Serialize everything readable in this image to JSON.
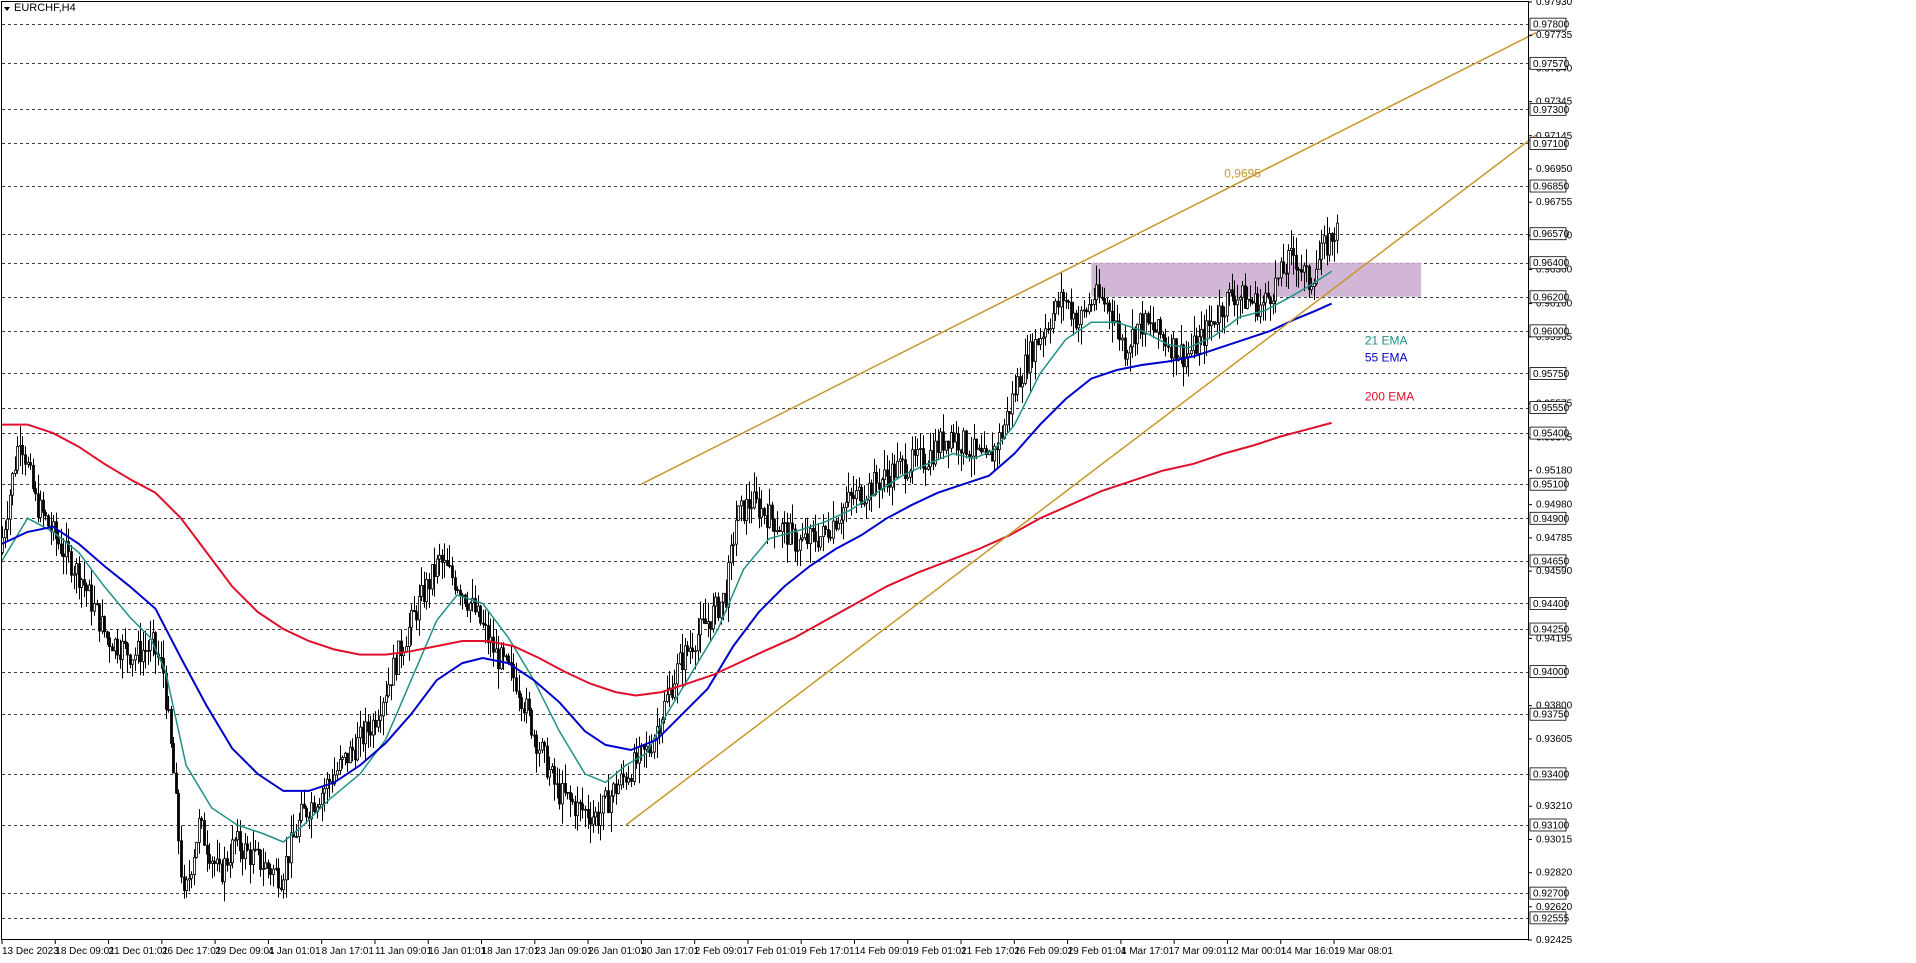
{
  "window": {
    "symbol_title": "EURCHF,H4"
  },
  "chart_data": {
    "type": "candlestick",
    "symbol": "EURCHF",
    "timeframe": "H4",
    "ylim": [
      0.92425,
      0.9793
    ],
    "y_ticks": [
      0.9793,
      0.978,
      0.97735,
      0.9757,
      0.9754,
      0.97345,
      0.973,
      0.97145,
      0.971,
      0.9695,
      0.9685,
      0.96755,
      0.9657,
      0.9656,
      0.964,
      0.9636,
      0.962,
      0.9616,
      0.96,
      0.95965,
      0.9575,
      0.95575,
      0.9555,
      0.954,
      0.95375,
      0.9518,
      0.951,
      0.9498,
      0.949,
      0.94785,
      0.9465,
      0.9459,
      0.944,
      0.9425,
      0.94195,
      0.94,
      0.938,
      0.9375,
      0.93605,
      0.934,
      0.9321,
      0.931,
      0.93015,
      0.9282,
      0.927,
      0.9262,
      0.92555,
      0.92425
    ],
    "y_tagged_levels": [
      0.978,
      0.9757,
      0.973,
      0.971,
      0.9685,
      0.9657,
      0.964,
      0.962,
      0.96,
      0.9575,
      0.9555,
      0.954,
      0.951,
      0.949,
      0.9465,
      0.944,
      0.9425,
      0.94,
      0.9375,
      0.934,
      0.931,
      0.927,
      0.92555
    ],
    "x_labels": [
      "13 Dec 2023",
      "18 Dec 09:01",
      "21 Dec 01:01",
      "26 Dec 17:01",
      "29 Dec 09:01",
      "4 Jan 01:01",
      "8 Jan 17:01",
      "11 Jan 09:01",
      "16 Jan 01:01",
      "18 Jan 17:01",
      "23 Jan 09:01",
      "26 Jan 01:01",
      "30 Jan 17:01",
      "2 Feb 09:01",
      "7 Feb 01:01",
      "9 Feb 17:01",
      "14 Feb 09:01",
      "19 Feb 01:01",
      "21 Feb 17:01",
      "26 Feb 09:01",
      "29 Feb 01:01",
      "4 Mar 17:01",
      "7 Mar 09:01",
      "12 Mar 00:01",
      "14 Mar 16:01",
      "19 Mar 08:01"
    ],
    "price_path": [
      [
        0,
        0.947
      ],
      [
        4,
        0.9505
      ],
      [
        8,
        0.954
      ],
      [
        14,
        0.95
      ],
      [
        22,
        0.9478
      ],
      [
        32,
        0.9455
      ],
      [
        42,
        0.942
      ],
      [
        52,
        0.941
      ],
      [
        60,
        0.9415
      ],
      [
        64,
        0.94
      ],
      [
        68,
        0.934
      ],
      [
        72,
        0.9265
      ],
      [
        78,
        0.931
      ],
      [
        86,
        0.928
      ],
      [
        92,
        0.93
      ],
      [
        100,
        0.929
      ],
      [
        110,
        0.928
      ],
      [
        118,
        0.9315
      ],
      [
        126,
        0.933
      ],
      [
        136,
        0.935
      ],
      [
        146,
        0.937
      ],
      [
        156,
        0.941
      ],
      [
        164,
        0.944
      ],
      [
        172,
        0.9465
      ],
      [
        180,
        0.945
      ],
      [
        186,
        0.9435
      ],
      [
        194,
        0.941
      ],
      [
        202,
        0.9395
      ],
      [
        210,
        0.936
      ],
      [
        218,
        0.933
      ],
      [
        226,
        0.932
      ],
      [
        234,
        0.9315
      ],
      [
        240,
        0.933
      ],
      [
        248,
        0.9345
      ],
      [
        254,
        0.9355
      ],
      [
        260,
        0.938
      ],
      [
        266,
        0.9405
      ],
      [
        272,
        0.942
      ],
      [
        278,
        0.9432
      ],
      [
        284,
        0.9445
      ],
      [
        288,
        0.949
      ],
      [
        294,
        0.95
      ],
      [
        302,
        0.949
      ],
      [
        312,
        0.9475
      ],
      [
        322,
        0.948
      ],
      [
        332,
        0.95
      ],
      [
        342,
        0.951
      ],
      [
        352,
        0.952
      ],
      [
        362,
        0.9525
      ],
      [
        372,
        0.954
      ],
      [
        380,
        0.953
      ],
      [
        386,
        0.9522
      ],
      [
        392,
        0.954
      ],
      [
        398,
        0.957
      ],
      [
        404,
        0.959
      ],
      [
        410,
        0.9605
      ],
      [
        416,
        0.962
      ],
      [
        422,
        0.9605
      ],
      [
        428,
        0.962
      ],
      [
        434,
        0.9615
      ],
      [
        440,
        0.959
      ],
      [
        446,
        0.9605
      ],
      [
        452,
        0.96
      ],
      [
        458,
        0.9592
      ],
      [
        464,
        0.9585
      ],
      [
        470,
        0.9595
      ],
      [
        476,
        0.961
      ],
      [
        482,
        0.9622
      ],
      [
        488,
        0.9618
      ],
      [
        494,
        0.9615
      ],
      [
        500,
        0.963
      ],
      [
        506,
        0.9645
      ],
      [
        512,
        0.9628
      ],
      [
        518,
        0.9648
      ],
      [
        522,
        0.9658
      ]
    ],
    "series": [
      {
        "name": "21 EMA",
        "color": "#1f9186",
        "points": [
          [
            0,
            0.9465
          ],
          [
            10,
            0.949
          ],
          [
            20,
            0.9482
          ],
          [
            30,
            0.947
          ],
          [
            40,
            0.945
          ],
          [
            50,
            0.9432
          ],
          [
            58,
            0.942
          ],
          [
            64,
            0.94
          ],
          [
            72,
            0.9345
          ],
          [
            82,
            0.932
          ],
          [
            92,
            0.931
          ],
          [
            102,
            0.9305
          ],
          [
            110,
            0.93
          ],
          [
            118,
            0.931
          ],
          [
            128,
            0.9325
          ],
          [
            140,
            0.934
          ],
          [
            150,
            0.936
          ],
          [
            160,
            0.9395
          ],
          [
            170,
            0.943
          ],
          [
            178,
            0.9445
          ],
          [
            188,
            0.944
          ],
          [
            198,
            0.942
          ],
          [
            208,
            0.9395
          ],
          [
            218,
            0.9365
          ],
          [
            228,
            0.934
          ],
          [
            236,
            0.9335
          ],
          [
            244,
            0.9345
          ],
          [
            252,
            0.9352
          ],
          [
            260,
            0.9375
          ],
          [
            270,
            0.94
          ],
          [
            280,
            0.9425
          ],
          [
            290,
            0.946
          ],
          [
            300,
            0.9478
          ],
          [
            312,
            0.9483
          ],
          [
            322,
            0.9488
          ],
          [
            332,
            0.9495
          ],
          [
            342,
            0.9505
          ],
          [
            352,
            0.9515
          ],
          [
            362,
            0.9522
          ],
          [
            372,
            0.9528
          ],
          [
            380,
            0.9525
          ],
          [
            388,
            0.953
          ],
          [
            396,
            0.9545
          ],
          [
            406,
            0.9575
          ],
          [
            416,
            0.9595
          ],
          [
            426,
            0.9605
          ],
          [
            436,
            0.9605
          ],
          [
            446,
            0.96
          ],
          [
            456,
            0.9592
          ],
          [
            464,
            0.959
          ],
          [
            474,
            0.9597
          ],
          [
            484,
            0.9608
          ],
          [
            494,
            0.9612
          ],
          [
            504,
            0.962
          ],
          [
            512,
            0.9627
          ],
          [
            520,
            0.9635
          ]
        ]
      },
      {
        "name": "55 EMA",
        "color": "#0000cc",
        "points": [
          [
            0,
            0.9475
          ],
          [
            10,
            0.9482
          ],
          [
            20,
            0.9485
          ],
          [
            30,
            0.9475
          ],
          [
            40,
            0.9462
          ],
          [
            50,
            0.945
          ],
          [
            60,
            0.9437
          ],
          [
            70,
            0.9408
          ],
          [
            80,
            0.938
          ],
          [
            90,
            0.9355
          ],
          [
            100,
            0.934
          ],
          [
            110,
            0.933
          ],
          [
            120,
            0.933
          ],
          [
            130,
            0.9335
          ],
          [
            140,
            0.9345
          ],
          [
            150,
            0.9358
          ],
          [
            160,
            0.9375
          ],
          [
            170,
            0.9395
          ],
          [
            180,
            0.9405
          ],
          [
            188,
            0.9408
          ],
          [
            198,
            0.9405
          ],
          [
            208,
            0.9395
          ],
          [
            218,
            0.9382
          ],
          [
            228,
            0.9365
          ],
          [
            236,
            0.9357
          ],
          [
            246,
            0.9354
          ],
          [
            256,
            0.936
          ],
          [
            266,
            0.9375
          ],
          [
            276,
            0.939
          ],
          [
            286,
            0.9415
          ],
          [
            296,
            0.9435
          ],
          [
            306,
            0.945
          ],
          [
            316,
            0.9462
          ],
          [
            326,
            0.9472
          ],
          [
            336,
            0.948
          ],
          [
            346,
            0.949
          ],
          [
            356,
            0.9498
          ],
          [
            366,
            0.9505
          ],
          [
            376,
            0.951
          ],
          [
            386,
            0.9515
          ],
          [
            396,
            0.9528
          ],
          [
            406,
            0.9545
          ],
          [
            416,
            0.956
          ],
          [
            426,
            0.9572
          ],
          [
            436,
            0.9577
          ],
          [
            446,
            0.958
          ],
          [
            456,
            0.9582
          ],
          [
            466,
            0.9585
          ],
          [
            476,
            0.959
          ],
          [
            486,
            0.9595
          ],
          [
            496,
            0.96
          ],
          [
            506,
            0.9607
          ],
          [
            514,
            0.9612
          ],
          [
            520,
            0.9616
          ]
        ]
      },
      {
        "name": "200 EMA",
        "color": "#e0102b",
        "points": [
          [
            0,
            0.9545
          ],
          [
            10,
            0.9545
          ],
          [
            20,
            0.954
          ],
          [
            30,
            0.9532
          ],
          [
            40,
            0.9522
          ],
          [
            50,
            0.9513
          ],
          [
            60,
            0.9505
          ],
          [
            70,
            0.949
          ],
          [
            80,
            0.947
          ],
          [
            90,
            0.945
          ],
          [
            100,
            0.9435
          ],
          [
            110,
            0.9425
          ],
          [
            120,
            0.9418
          ],
          [
            130,
            0.9413
          ],
          [
            140,
            0.941
          ],
          [
            150,
            0.941
          ],
          [
            160,
            0.9412
          ],
          [
            170,
            0.9415
          ],
          [
            180,
            0.9418
          ],
          [
            190,
            0.9418
          ],
          [
            200,
            0.9415
          ],
          [
            210,
            0.9408
          ],
          [
            220,
            0.94
          ],
          [
            230,
            0.9393
          ],
          [
            240,
            0.9388
          ],
          [
            248,
            0.9386
          ],
          [
            258,
            0.9388
          ],
          [
            268,
            0.9393
          ],
          [
            278,
            0.9398
          ],
          [
            288,
            0.9405
          ],
          [
            298,
            0.9412
          ],
          [
            310,
            0.942
          ],
          [
            322,
            0.943
          ],
          [
            334,
            0.944
          ],
          [
            346,
            0.945
          ],
          [
            358,
            0.9458
          ],
          [
            370,
            0.9465
          ],
          [
            382,
            0.9472
          ],
          [
            394,
            0.948
          ],
          [
            406,
            0.949
          ],
          [
            418,
            0.9498
          ],
          [
            430,
            0.9506
          ],
          [
            442,
            0.9512
          ],
          [
            454,
            0.9518
          ],
          [
            466,
            0.9522
          ],
          [
            478,
            0.9528
          ],
          [
            490,
            0.9533
          ],
          [
            500,
            0.9538
          ],
          [
            510,
            0.9542
          ],
          [
            520,
            0.9546
          ]
        ]
      }
    ],
    "channel": {
      "color": "#c8962a",
      "upper": {
        "p1": [
          250,
          0.951
        ],
        "p2": [
          600,
          0.9775
        ]
      },
      "lower": {
        "p1": [
          244,
          0.931
        ],
        "p2": [
          600,
          0.9715
        ]
      }
    },
    "zone": {
      "color": "#c9a9cf",
      "x_from": 426,
      "x_to": 555,
      "y_from": 0.962,
      "y_to": 0.964
    },
    "annotations": [
      {
        "text": "0,9695",
        "x": 478,
        "y": 0.969,
        "color": "#c8962a"
      },
      {
        "text": "21 EMA",
        "x": 533,
        "y": 0.9592,
        "color": "#1f9186"
      },
      {
        "text": "55 EMA",
        "x": 533,
        "y": 0.9582,
        "color": "#0000cc"
      },
      {
        "text": "200 EMA",
        "x": 533,
        "y": 0.9559,
        "color": "#e0102b"
      }
    ]
  }
}
